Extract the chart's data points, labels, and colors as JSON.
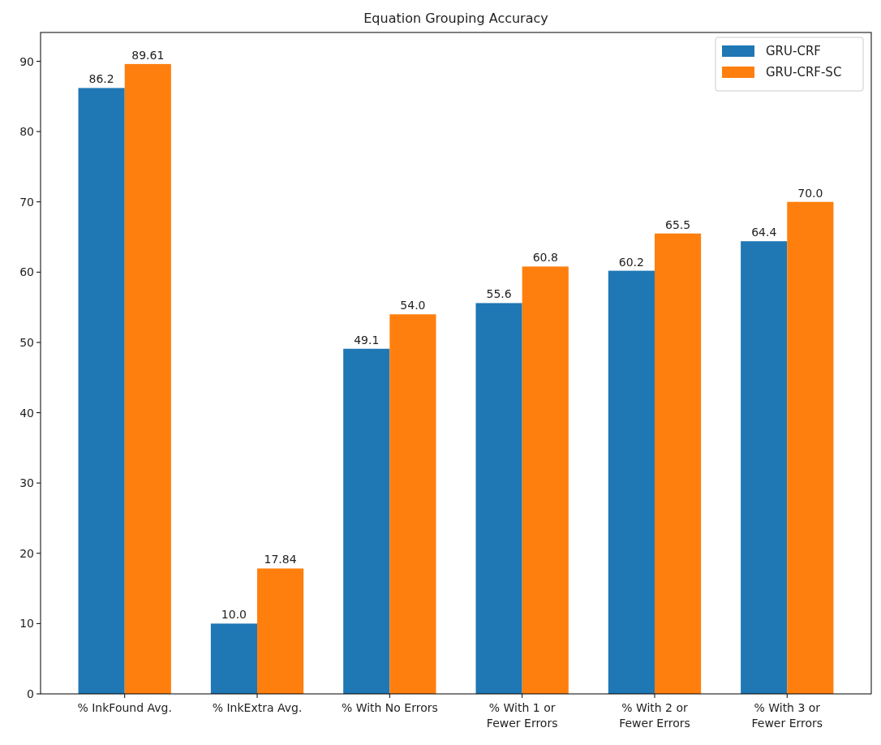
{
  "chart_data": {
    "type": "bar",
    "title": "Equation Grouping Accuracy",
    "categories": [
      "% InkFound Avg.",
      "% InkExtra Avg.",
      "% With No Errors",
      "% With 1 or\nFewer Errors",
      "% With 2 or\nFewer Errors",
      "% With 3 or\nFewer Errors"
    ],
    "series": [
      {
        "name": "GRU-CRF",
        "color": "#1f77b4",
        "values": [
          86.2,
          10.0,
          49.1,
          55.6,
          60.2,
          64.4
        ],
        "value_labels": [
          "86.2",
          "10.0",
          "49.1",
          "55.6",
          "60.2",
          "64.4"
        ]
      },
      {
        "name": "GRU-CRF-SC",
        "color": "#ff7f0e",
        "values": [
          89.61,
          17.84,
          54.0,
          60.8,
          65.5,
          70.0
        ],
        "value_labels": [
          "89.61",
          "17.84",
          "54.0",
          "60.8",
          "65.5",
          "70.0"
        ]
      }
    ],
    "ylim": [
      0,
      94.1
    ],
    "yticks": [
      0,
      10,
      20,
      30,
      40,
      50,
      60,
      70,
      80,
      90
    ],
    "grid": false,
    "legend": "top right"
  }
}
